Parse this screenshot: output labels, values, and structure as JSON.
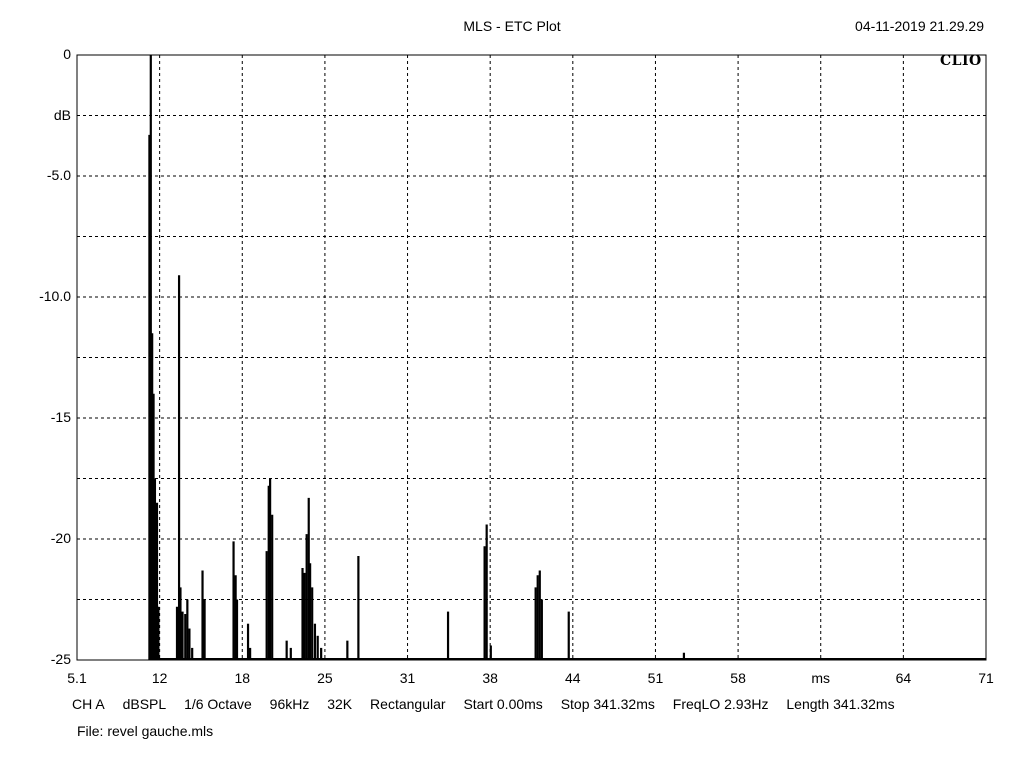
{
  "header": {
    "title": "MLS - ETC Plot",
    "datetime": "04-11-2019 21.29.29",
    "brand": "CLIO"
  },
  "info": {
    "channel": "CH A",
    "unit": "dBSPL",
    "smoothing": "1/6 Octave",
    "sample_rate": "96kHz",
    "mls_size": "32K",
    "window": "Rectangular",
    "start": "Start 0.00ms",
    "stop": "Stop 341.32ms",
    "freq_lo": "FreqLO 2.93Hz",
    "length": "Length 341.32ms"
  },
  "file": "File: revel gauche.mls",
  "chart_data": {
    "type": "line",
    "title": "MLS - ETC Plot",
    "xlabel": "ms",
    "ylabel": "dB",
    "xlim": [
      5.1,
      71
    ],
    "ylim": [
      -25,
      0
    ],
    "x_ticks": [
      "5.1",
      "12",
      "18",
      "25",
      "31",
      "38",
      "44",
      "51",
      "58",
      "ms",
      "64",
      "71"
    ],
    "y_ticks": [
      "0",
      "dB",
      "-5.0",
      "",
      "-10.0",
      "",
      "-15",
      "",
      "-20",
      "",
      "-25"
    ],
    "grid": true,
    "series": [
      {
        "x": [
          10.35,
          10.45,
          10.55,
          10.65,
          10.75,
          10.9,
          11.0,
          12.35,
          12.5,
          12.6,
          12.75,
          12.95,
          13.1,
          13.25,
          13.45,
          14.2,
          14.35,
          16.45,
          16.6,
          16.7,
          17.5,
          17.65,
          18.85,
          19.0,
          19.1,
          19.25,
          20.3,
          20.6,
          21.45,
          21.6,
          21.75,
          21.9,
          22.0,
          22.15,
          22.35,
          22.55,
          22.8,
          24.7,
          25.5,
          32.0,
          34.65,
          34.8,
          35.1,
          38.35,
          38.5,
          38.65,
          38.8,
          40.75,
          49.1
        ],
        "values": [
          -3.3,
          0,
          -11.5,
          -14,
          -17.5,
          -18.5,
          -22.8,
          -22.8,
          -9.1,
          -22,
          -23,
          -23.1,
          -22.5,
          -23.7,
          -24.5,
          -21.3,
          -22.5,
          -20.1,
          -21.5,
          -22.5,
          -23.5,
          -24.5,
          -20.5,
          -17.8,
          -17.5,
          -19,
          -24.2,
          -24.5,
          -21.2,
          -21.4,
          -19.8,
          -18.3,
          -21,
          -22,
          -23.5,
          -24,
          -24.5,
          -24.2,
          -20.7,
          -23,
          -20.3,
          -19.4,
          -24.4,
          -22,
          -21.5,
          -21.3,
          -22.5,
          -23,
          -24.7
        ]
      }
    ]
  }
}
